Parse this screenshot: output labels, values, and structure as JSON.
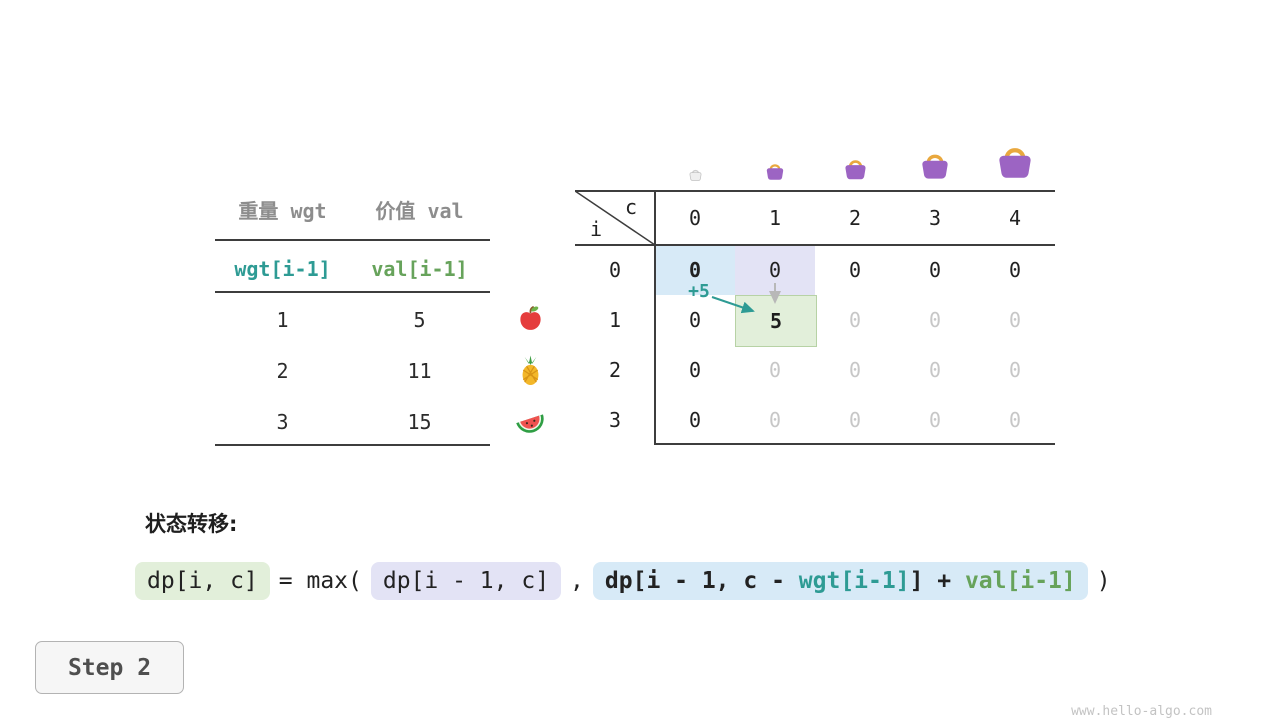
{
  "page": {
    "watermark": "www.hello-algo.com"
  },
  "step": {
    "label": "Step 2"
  },
  "colors": {
    "teal": "#2E9B94",
    "green": "#67A35B",
    "highlight_blue": "#d7eaf7",
    "highlight_purple": "#e3e3f5",
    "highlight_green": "#e2efda"
  },
  "items_table": {
    "col1_header": "重量 wgt",
    "col2_header": "价值 val",
    "formula_row": {
      "wgt": "wgt[i-1]",
      "val": "val[i-1]"
    },
    "rows": [
      {
        "wgt": "1",
        "val": "5",
        "icon": "apple-icon"
      },
      {
        "wgt": "2",
        "val": "11",
        "icon": "pineapple-icon"
      },
      {
        "wgt": "3",
        "val": "15",
        "icon": "watermelon-icon"
      }
    ]
  },
  "dp_table": {
    "corner_top": "c",
    "corner_bottom": "i",
    "col_headers": [
      "0",
      "1",
      "2",
      "3",
      "4"
    ],
    "row_headers": [
      "0",
      "1",
      "2",
      "3"
    ],
    "annotation": "+5",
    "bag_icons": [
      "bag-ghost-icon",
      "bag-small-icon",
      "bag-medium-icon",
      "bag-large-icon",
      "bag-xlarge-icon"
    ],
    "cells": [
      [
        {
          "v": "0",
          "s": "src-blue"
        },
        {
          "v": "0",
          "s": "src-purple"
        },
        {
          "v": "0",
          "s": "done"
        },
        {
          "v": "0",
          "s": "done"
        },
        {
          "v": "0",
          "s": "done"
        }
      ],
      [
        {
          "v": "0",
          "s": "done"
        },
        {
          "v": "5",
          "s": "active"
        },
        {
          "v": "0",
          "s": "todo"
        },
        {
          "v": "0",
          "s": "todo"
        },
        {
          "v": "0",
          "s": "todo"
        }
      ],
      [
        {
          "v": "0",
          "s": "done"
        },
        {
          "v": "0",
          "s": "todo"
        },
        {
          "v": "0",
          "s": "todo"
        },
        {
          "v": "0",
          "s": "todo"
        },
        {
          "v": "0",
          "s": "todo"
        }
      ],
      [
        {
          "v": "0",
          "s": "done"
        },
        {
          "v": "0",
          "s": "todo"
        },
        {
          "v": "0",
          "s": "todo"
        },
        {
          "v": "0",
          "s": "todo"
        },
        {
          "v": "0",
          "s": "todo"
        }
      ]
    ]
  },
  "transition": {
    "title": "状态转移:",
    "lhs": "dp[i, c]",
    "eq_max": "= max(",
    "option_keep": "dp[i - 1, c]",
    "comma": ",",
    "take_prefix": "dp[i - 1, c - ",
    "take_wgt": "wgt[i-1]",
    "take_mid": "] + ",
    "take_val": "val[i-1]",
    "close": ")"
  }
}
